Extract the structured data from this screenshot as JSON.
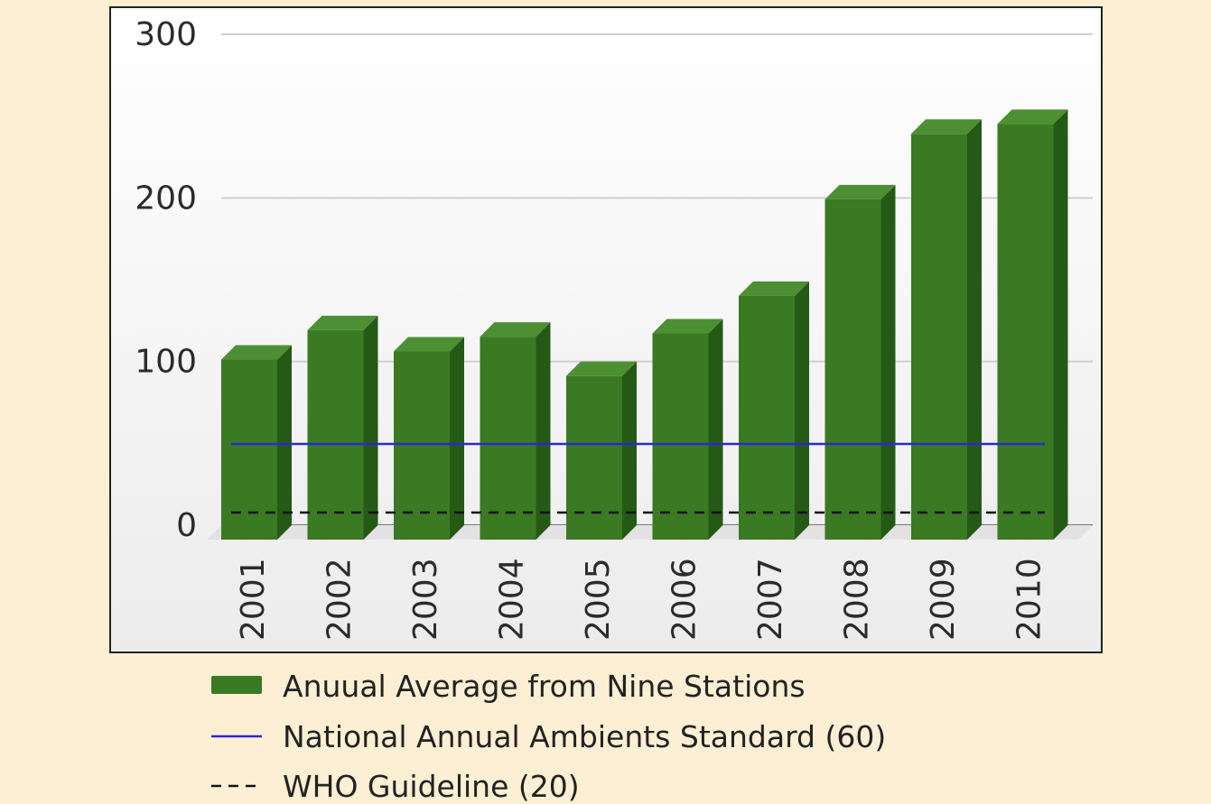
{
  "chart_data": {
    "type": "bar",
    "categories": [
      "2001",
      "2002",
      "2003",
      "2004",
      "2005",
      "2006",
      "2007",
      "2008",
      "2009",
      "2010"
    ],
    "series": [
      {
        "name": "Anuual Average from Nine Stations",
        "values": [
          110,
          128,
          115,
          124,
          100,
          126,
          149,
          208,
          248,
          254
        ],
        "color": "#3a7a22"
      }
    ],
    "reference_lines": [
      {
        "name": "National Annual Ambients Standard (60)",
        "value": 60,
        "style": "solid",
        "color": "#2a2acc"
      },
      {
        "name": "WHO Guideline (20)",
        "value": 20,
        "style": "dashed",
        "color": "#111111"
      }
    ],
    "ylim": [
      0,
      300
    ],
    "yticks": [
      0,
      100,
      200,
      300
    ],
    "grid": true,
    "legend_position": "bottom",
    "style": "3d-bar",
    "colors": {
      "background": "#fdefd3",
      "plot_background": "#f4f4f4",
      "bar_front": "#3a7a22",
      "bar_top": "#4d8f33",
      "bar_side": "#255a16"
    }
  }
}
